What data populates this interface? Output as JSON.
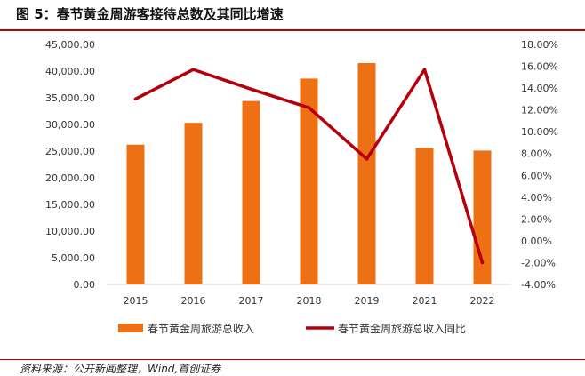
{
  "header": {
    "title": "图 5：春节黄金周游客接待总数及其同比增速"
  },
  "footer": {
    "source": "资料来源：公开新闻整理，Wind,首创证券"
  },
  "colors": {
    "bar": "#ee7014",
    "line": "#b5000b",
    "rule": "#c00000"
  },
  "chart_data": {
    "type": "bar+line",
    "title": "",
    "categories": [
      "2015",
      "2016",
      "2017",
      "2018",
      "2019",
      "2021",
      "2022"
    ],
    "series": [
      {
        "name": "春节黄金周旅游总收入",
        "type": "bar",
        "axis": "left",
        "values": [
          26200,
          30300,
          34400,
          38600,
          41500,
          25600,
          25100
        ]
      },
      {
        "name": "春节黄金周旅游总收入同比",
        "type": "line",
        "axis": "right",
        "values": [
          13.0,
          15.7,
          13.9,
          12.2,
          7.5,
          15.7,
          -2.0
        ]
      }
    ],
    "y_left": {
      "min": 0,
      "max": 45000,
      "step": 5000,
      "ticks": [
        "0.00",
        "5,000.00",
        "10,000.00",
        "15,000.00",
        "20,000.00",
        "25,000.00",
        "30,000.00",
        "35,000.00",
        "40,000.00",
        "45,000.00"
      ]
    },
    "y_right": {
      "min": -4,
      "max": 18,
      "step": 2,
      "ticks": [
        "-4.00%",
        "-2.00%",
        "0.00%",
        "2.00%",
        "4.00%",
        "6.00%",
        "8.00%",
        "10.00%",
        "12.00%",
        "14.00%",
        "16.00%",
        "18.00%"
      ]
    },
    "grid": false,
    "legend": {
      "position": "bottom"
    }
  }
}
